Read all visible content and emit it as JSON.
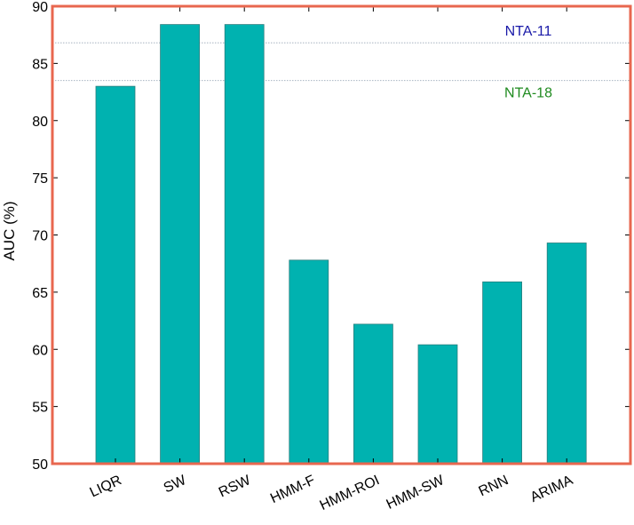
{
  "chart_data": {
    "type": "bar",
    "categories": [
      "LIQR",
      "SW",
      "RSW",
      "HMM-F",
      "HMM-ROI",
      "HMM-SW",
      "RNN",
      "ARIMA"
    ],
    "values": [
      83.0,
      88.4,
      88.4,
      67.8,
      62.2,
      60.4,
      65.9,
      69.3
    ],
    "title": "",
    "xlabel": "",
    "ylabel": "AUC (%)",
    "ylim": [
      50,
      90
    ],
    "yticks": [
      50,
      55,
      60,
      65,
      70,
      75,
      80,
      85,
      90
    ],
    "grid": false,
    "bar_color": "#00b2b0",
    "frame_color": "#e8674f",
    "reference_lines": [
      {
        "label": "NTA-11",
        "value": 86.8,
        "color": "#1a1aa8"
      },
      {
        "label": "NTA-18",
        "value": 83.5,
        "color": "#1e8a1e"
      }
    ]
  }
}
